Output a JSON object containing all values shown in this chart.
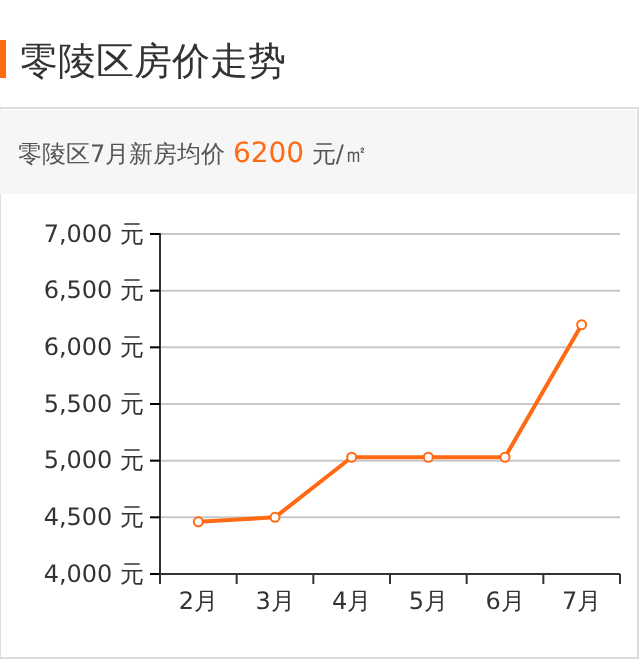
{
  "chart_data": {
    "type": "line",
    "title": "零陵区房价走势",
    "subtitle": "零陵区7月新房均价 6200 元/㎡",
    "categories": [
      "2月",
      "3月",
      "4月",
      "5月",
      "6月",
      "7月"
    ],
    "series": [
      {
        "color": "#ff6a13",
        "values": [
          4460,
          4500,
          5030,
          5030,
          5030,
          6200
        ]
      }
    ],
    "ylim": [
      4000,
      7000
    ],
    "yticks": [
      {
        "value": 4000,
        "label": "4,000 元"
      },
      {
        "value": 4500,
        "label": "4,500 元"
      },
      {
        "value": 5000,
        "label": "5,000 元"
      },
      {
        "value": 5500,
        "label": "5,500 元"
      },
      {
        "value": 6000,
        "label": "6,000 元"
      },
      {
        "value": 6500,
        "label": "6,500 元"
      },
      {
        "value": 7000,
        "label": "7,000 元"
      }
    ],
    "grid": "y",
    "marker": "circle",
    "line_style": "solid"
  }
}
